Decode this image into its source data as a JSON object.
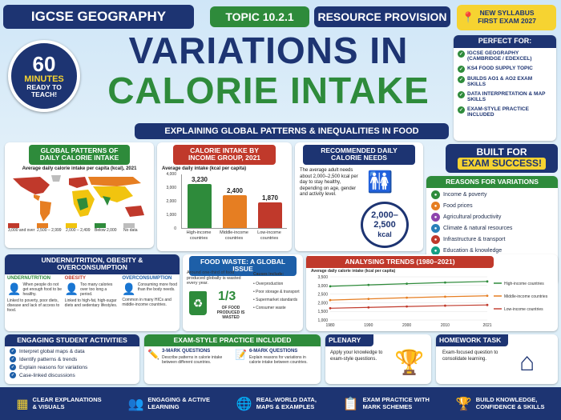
{
  "header": {
    "brand": "IGCSE GEOGRAPHY",
    "topic": "TOPIC 10.2.1",
    "resource": "RESOURCE PROVISION",
    "syllabus": "NEW SYLLABUS\nFIRST EXAM 2027",
    "title_line1": "VARIATIONS IN",
    "title_line2": "CALORIE INTAKE",
    "subtitle": "EXPLAINING GLOBAL PATTERNS & INEQUALITIES IN FOOD",
    "badge_num": "60",
    "badge_unit": "MINUTES",
    "badge_text": "READY TO\nTEACH!"
  },
  "perfect_for": {
    "title": "PERFECT FOR:",
    "items": [
      "IGCSE GEOGRAPHY (CAMBRIDGE / EDEXCEL)",
      "KS4 FOOD SUPPLY TOPIC",
      "BUILDS AO1 & AO2 EXAM SKILLS",
      "DATA INTERPRETATION & MAP SKILLS",
      "EXAM-STYLE PRACTICE INCLUDED"
    ]
  },
  "built_for": {
    "line1": "BUILT FOR",
    "line2": "EXAM SUCCESS!"
  },
  "reasons": {
    "title": "REASONS FOR VARIATIONS",
    "items": [
      {
        "label": "Income & poverty",
        "icon": "money-icon",
        "color": "#2e8b3b"
      },
      {
        "label": "Food prices",
        "icon": "tag-icon",
        "color": "#e67e22"
      },
      {
        "label": "Agricultural productivity",
        "icon": "tractor-icon",
        "color": "#8e44ad"
      },
      {
        "label": "Climate & natural resources",
        "icon": "cloud-icon",
        "color": "#2980b9"
      },
      {
        "label": "Infrastructure & transport",
        "icon": "truck-icon",
        "color": "#c0392b"
      },
      {
        "label": "Education & knowledge",
        "icon": "book-icon",
        "color": "#16a085"
      },
      {
        "label": "Political stability",
        "icon": "flag-icon",
        "color": "#1d3472"
      },
      {
        "label": "Cultural preferences",
        "icon": "people-icon",
        "color": "#d35400"
      }
    ]
  },
  "global_map": {
    "title": "GLOBAL PATTERNS OF DAILY CALORIE INTAKE",
    "subtitle": "Average daily calorie intake per capita (kcal), 2021",
    "legend": [
      {
        "label": "3,000 and over",
        "color": "#c0392b"
      },
      {
        "label": "2,500 – 2,999",
        "color": "#e67e22"
      },
      {
        "label": "2,000 – 2,499",
        "color": "#f1c40f"
      },
      {
        "label": "Below 2,000",
        "color": "#2e8b3b"
      },
      {
        "label": "No data",
        "color": "#bdbdbd"
      }
    ]
  },
  "income_chart": {
    "title": "CALORIE INTAKE BY INCOME GROUP, 2021",
    "ylabel": "Average daily intake (kcal per capita)"
  },
  "chart_data": [
    {
      "type": "bar",
      "title": "CALORIE INTAKE BY INCOME GROUP, 2021",
      "ylabel": "Average daily intake (kcal per capita)",
      "categories": [
        "High-income countries",
        "Middle-income countries",
        "Low-income countries"
      ],
      "values": [
        3230,
        2400,
        1870
      ],
      "value_labels": [
        "3,230",
        "2,400",
        "1,870"
      ],
      "colors": [
        "#2e8b3b",
        "#e67e22",
        "#c0392b"
      ],
      "ylim": [
        0,
        4000
      ],
      "yticks": [
        "4,000",
        "3,000",
        "2,000",
        "1,000",
        "0"
      ]
    },
    {
      "type": "line",
      "title": "ANALYSING TRENDS (1980–2021)",
      "ylabel": "Average daily calorie intake (kcal per capita)",
      "x": [
        1980,
        1990,
        2000,
        2010,
        2021
      ],
      "ylim": [
        1000,
        3500
      ],
      "yticks": [
        "3,500",
        "3,000",
        "2,500",
        "2,000",
        "1,500",
        "1,000"
      ],
      "series": [
        {
          "name": "High-income countries",
          "values": [
            2950,
            3030,
            3100,
            3170,
            3230
          ],
          "color": "#2e8b3b"
        },
        {
          "name": "Middle-income countries",
          "values": [
            2150,
            2220,
            2290,
            2350,
            2400
          ],
          "color": "#e67e22"
        },
        {
          "name": "Low-income countries",
          "values": [
            1680,
            1730,
            1780,
            1830,
            1870
          ],
          "color": "#c0392b"
        }
      ]
    }
  ],
  "recommended": {
    "title": "RECOMMENDED DAILY CALORIE NEEDS",
    "text": "The average adult needs about 2,000–2,500 kcal per day to stay healthy, depending on age, gender and activity level.",
    "range": "2,000–\n2,500",
    "unit": "kcal"
  },
  "undernutrition": {
    "title": "UNDERNUTRITION, OBESITY & OVERCONSUMPTION",
    "cols": [
      {
        "head": "UNDERNUTRITION",
        "desc": "When people do not get enough food to be healthy.",
        "note": "Linked to poverty, poor diets, disease and lack of access to food.",
        "color": "#2e8b3b"
      },
      {
        "head": "OBESITY",
        "desc": "Too many calories over too long a period.",
        "note": "Linked to high-fat, high-sugar diets and sedentary lifestyles.",
        "color": "#c0392b"
      },
      {
        "head": "OVERCONSUMPTION",
        "desc": "Consuming more food than the body needs.",
        "note": "Common in many HICs and middle-income countries.",
        "color": "#1d5fa8"
      }
    ]
  },
  "food_waste": {
    "title": "FOOD WASTE: A GLOBAL ISSUE",
    "intro": "Around one-third of food produced globally is wasted every year.",
    "fraction": "1/3",
    "fraction_text": "OF FOOD PRODUCED IS WASTED",
    "causes_title": "Causes include:",
    "causes": [
      "• Overproduction",
      "• Poor storage & transport",
      "• Supermarket standards",
      "• Consumer waste"
    ]
  },
  "trends": {
    "title": "ANALYSING TRENDS (1980–2021)",
    "ylabel": "Average daily calorie intake (kcal per capita)"
  },
  "student_activities": {
    "title": "ENGAGING STUDENT ACTIVITIES",
    "items": [
      "Interpret global maps & data",
      "Identify patterns & trends",
      "Explain reasons for variations",
      "Case-linked discussions"
    ]
  },
  "exam_practice": {
    "title": "EXAM-STYLE PRACTICE INCLUDED",
    "q1_head": "3-MARK QUESTIONS",
    "q1_text": "Describe patterns in calorie intake between different countries.",
    "q2_head": "6-MARK QUESTIONS",
    "q2_text": "Explain reasons for variations in calorie intake between countries."
  },
  "plenary": {
    "title": "PLENARY",
    "text": "Apply your knowledge to exam-style questions."
  },
  "homework": {
    "title": "HOMEWORK TASK",
    "text": "Exam-focused question to consolidate learning."
  },
  "footer": [
    {
      "label": "CLEAR EXPLANATIONS\n& VISUALS",
      "icon": "grid-icon"
    },
    {
      "label": "ENGAGING & ACTIVE\nLEARNING",
      "icon": "group-icon"
    },
    {
      "label": "REAL-WORLD DATA,\nMAPS & EXAMPLES",
      "icon": "globe-icon"
    },
    {
      "label": "EXAM PRACTICE WITH\nMARK SCHEMES",
      "icon": "clipboard-icon"
    },
    {
      "label": "BUILD KNOWLEDGE,\nCONFIDENCE & SKILLS",
      "icon": "trophy-icon"
    }
  ]
}
